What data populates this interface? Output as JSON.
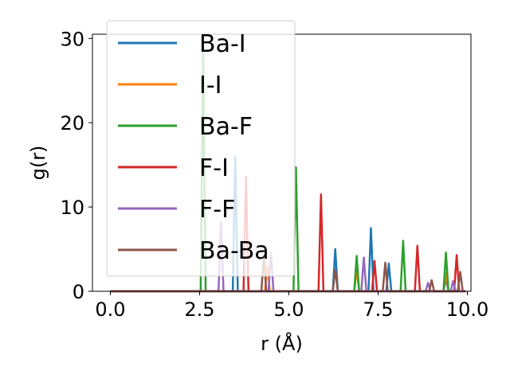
{
  "chart_data": {
    "type": "line",
    "title": "",
    "xlabel": "r (Å)",
    "ylabel": "g(r)",
    "xlim": [
      -0.5,
      10.1
    ],
    "ylim": [
      0,
      30.5
    ],
    "xticks": [
      0.0,
      2.5,
      5.0,
      7.5,
      10.0
    ],
    "xtick_labels": [
      "0.0",
      "2.5",
      "5.0",
      "7.5",
      "10.0"
    ],
    "yticks": [
      0,
      10,
      20,
      30
    ],
    "ytick_labels": [
      "0",
      "10",
      "20",
      "30"
    ],
    "grid": false,
    "legend_position": "upper-left",
    "series": [
      {
        "name": "Ba-I",
        "color": "#1f77b4",
        "peaks": [
          [
            3.5,
            16.0
          ],
          [
            6.3,
            5.0
          ],
          [
            7.3,
            7.5
          ],
          [
            7.8,
            3.3
          ],
          [
            9.4,
            1.5
          ]
        ]
      },
      {
        "name": "I-I",
        "color": "#ff7f0e",
        "peaks": [
          [
            4.4,
            3.0
          ],
          [
            6.9,
            2.5
          ],
          [
            9.4,
            2.2
          ]
        ]
      },
      {
        "name": "Ba-F",
        "color": "#2ca02c",
        "peaks": [
          [
            2.6,
            28.8
          ],
          [
            5.2,
            14.7
          ],
          [
            6.9,
            4.2
          ],
          [
            8.2,
            6.0
          ],
          [
            9.4,
            4.6
          ]
        ]
      },
      {
        "name": "F-I",
        "color": "#d62728",
        "peaks": [
          [
            3.8,
            13.6
          ],
          [
            5.9,
            11.5
          ],
          [
            7.4,
            3.6
          ],
          [
            8.6,
            5.4
          ],
          [
            9.7,
            4.3
          ]
        ]
      },
      {
        "name": "F-F",
        "color": "#9467bd",
        "peaks": [
          [
            3.1,
            8.2
          ],
          [
            4.5,
            4.5
          ],
          [
            7.1,
            4.0
          ],
          [
            8.9,
            1.0
          ],
          [
            9.6,
            1.2
          ]
        ]
      },
      {
        "name": "Ba-Ba",
        "color": "#8c564b",
        "peaks": [
          [
            4.3,
            4.2
          ],
          [
            6.3,
            2.6
          ],
          [
            7.7,
            3.4
          ],
          [
            9.0,
            1.3
          ],
          [
            9.8,
            2.3
          ]
        ]
      }
    ]
  }
}
